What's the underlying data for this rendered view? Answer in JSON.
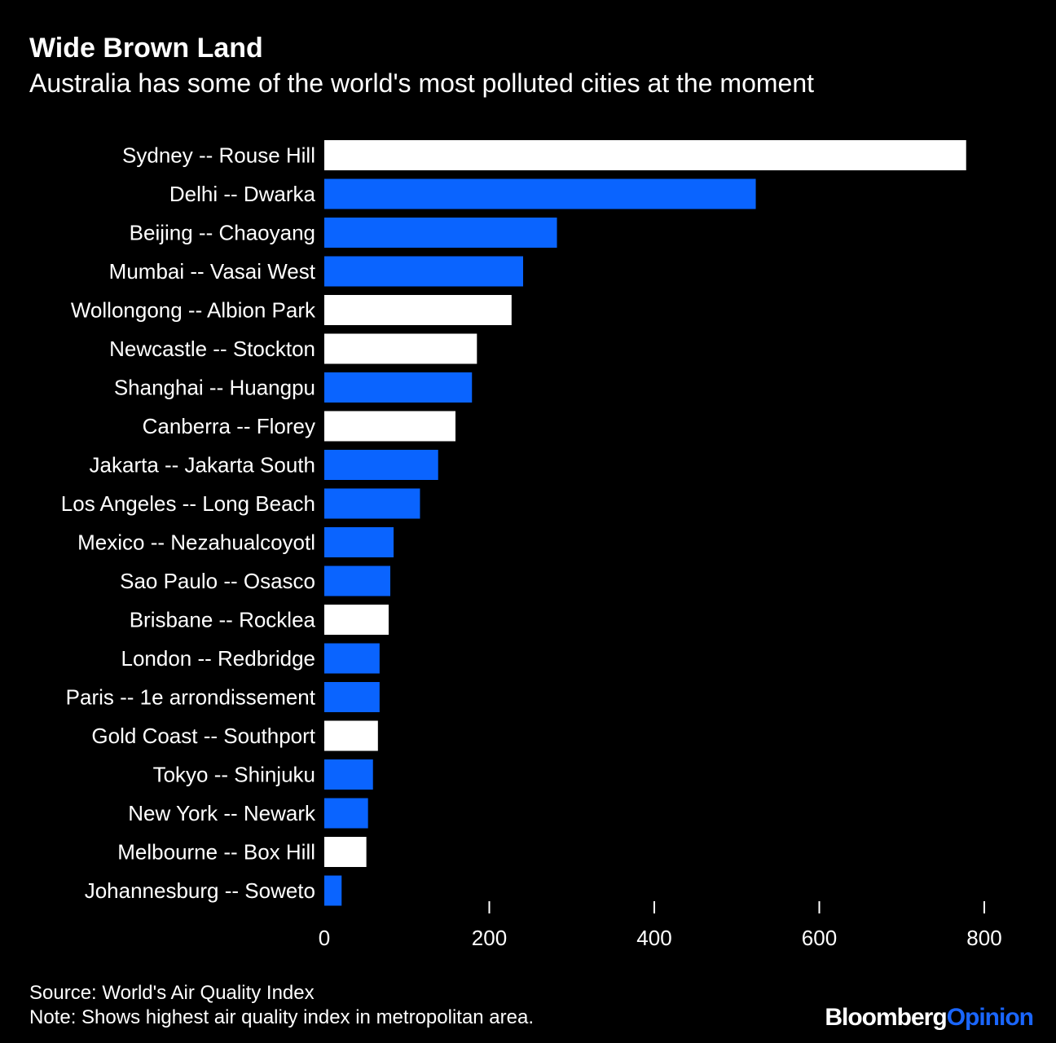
{
  "header": {
    "title": "Wide Brown Land",
    "subtitle": "Australia has some of the world's most polluted cities at the moment"
  },
  "footer": {
    "source": "Source: World's Air Quality Index",
    "note": "Note: Shows highest air quality index in metropolitan area.",
    "brand_part1": "Bloomberg",
    "brand_part2": "Opinion"
  },
  "colors": {
    "australia": "#ffffff",
    "other": "#0a64ff",
    "background": "#000000",
    "text": "#ffffff"
  },
  "chart_data": {
    "type": "bar",
    "orientation": "horizontal",
    "title": "Wide Brown Land",
    "subtitle": "Australia has some of the world's most polluted cities at the moment",
    "xlim": [
      0,
      800
    ],
    "xticks": [
      0,
      200,
      400,
      600,
      800
    ],
    "grid": false,
    "categories": [
      "Sydney -- Rouse Hill",
      "Delhi -- Dwarka",
      "Beijing -- Chaoyang",
      "Mumbai -- Vasai West",
      "Wollongong -- Albion Park",
      "Newcastle -- Stockton",
      "Shanghai -- Huangpu",
      "Canberra -- Florey",
      "Jakarta -- Jakarta South",
      "Los Angeles -- Long Beach",
      "Mexico -- Nezahualcoyotl",
      "Sao Paulo -- Osasco",
      "Brisbane -- Rocklea",
      "London -- Redbridge",
      "Paris -- 1e arrondissement",
      "Gold Coast -- Southport",
      "Tokyo -- Shinjuku",
      "New York -- Newark",
      "Melbourne -- Box Hill",
      "Johannesburg -- Soweto"
    ],
    "values": [
      778,
      523,
      282,
      241,
      227,
      185,
      179,
      159,
      138,
      116,
      84,
      80,
      78,
      67,
      67,
      65,
      59,
      53,
      51,
      21
    ],
    "australian": [
      true,
      false,
      false,
      false,
      true,
      true,
      false,
      true,
      false,
      false,
      false,
      false,
      true,
      false,
      false,
      true,
      false,
      false,
      true,
      false
    ]
  }
}
